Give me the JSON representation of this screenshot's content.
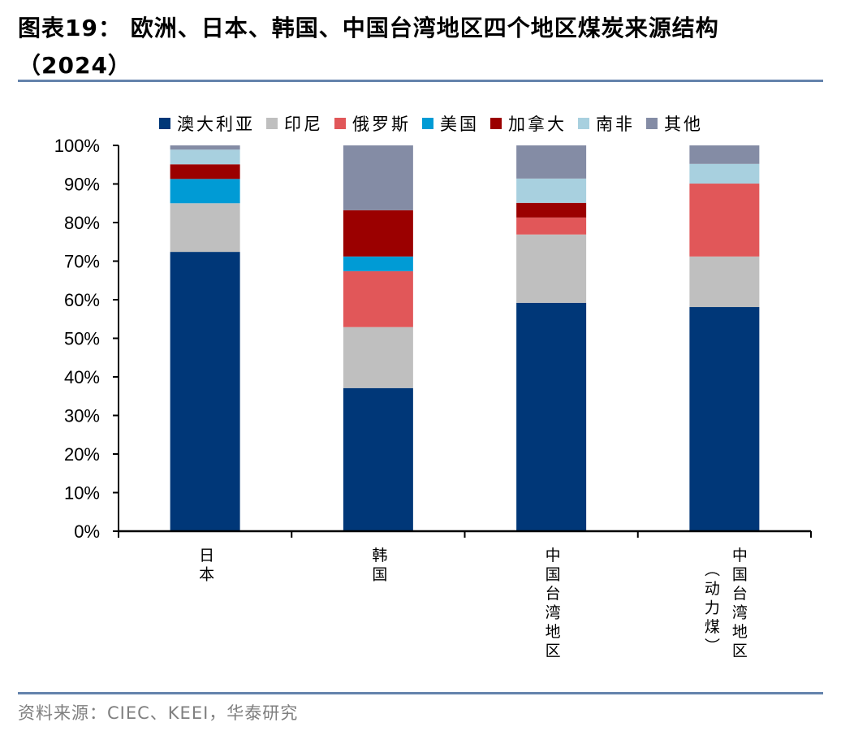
{
  "header": {
    "title_line1": "图表19： 欧洲、日本、韩国、中国台湾地区四个地区煤炭来源结构",
    "title_line2": "（2024）"
  },
  "footer": {
    "source": "资料来源：CIEC、KEEI，华泰研究"
  },
  "chart_data": {
    "type": "bar",
    "stacked": true,
    "title": "欧洲、日本、韩国、中国台湾地区四个地区煤炭来源结构（2024）",
    "xlabel": "",
    "ylabel": "",
    "ylim": [
      0,
      100
    ],
    "y_unit": "%",
    "y_ticks": [
      "0%",
      "10%",
      "20%",
      "30%",
      "40%",
      "50%",
      "60%",
      "70%",
      "80%",
      "90%",
      "100%"
    ],
    "grid": false,
    "legend_position": "top",
    "categories": [
      "日本",
      "韩国",
      "中国台湾地区",
      "中国台湾地区（动力煤）"
    ],
    "category_label_lines": [
      [
        "日本"
      ],
      [
        "韩国"
      ],
      [
        "中国台湾地区"
      ],
      [
        "中国台湾地区",
        "（动力煤）"
      ]
    ],
    "series": [
      {
        "name": "澳大利亚",
        "color": "#003778",
        "values": [
          72.4,
          37.1,
          59.2,
          58.1
        ]
      },
      {
        "name": "印尼",
        "color": "#bfbfbf",
        "values": [
          12.6,
          15.8,
          17.7,
          13.1
        ]
      },
      {
        "name": "俄罗斯",
        "color": "#e15759",
        "values": [
          0.0,
          14.5,
          4.4,
          18.9
        ]
      },
      {
        "name": "美国",
        "color": "#009bd5",
        "values": [
          6.3,
          3.8,
          0.0,
          0.0
        ]
      },
      {
        "name": "加拿大",
        "color": "#9b0000",
        "values": [
          3.8,
          12.0,
          3.8,
          0.0
        ]
      },
      {
        "name": "南非",
        "color": "#a8d0df",
        "values": [
          3.8,
          0.0,
          6.3,
          5.1
        ]
      },
      {
        "name": "其他",
        "color": "#848ca5",
        "values": [
          1.1,
          16.8,
          8.6,
          4.8
        ]
      }
    ]
  }
}
